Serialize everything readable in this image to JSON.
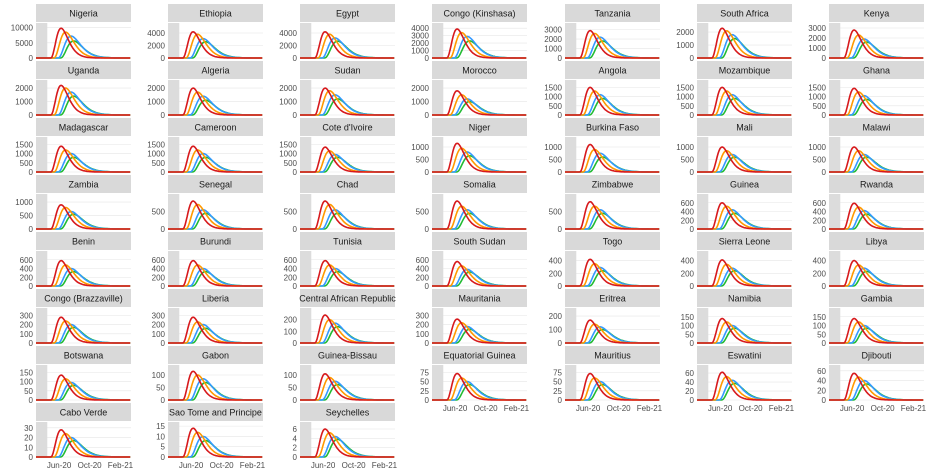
{
  "chart_data": {
    "type": "line",
    "layout": "facet-grid",
    "series_colors": {
      "scenario_a": "#d7191c",
      "scenario_b": "#ff9900",
      "scenario_c": "#3399ff",
      "scenario_d": "#22bb33"
    },
    "x_ticks": [
      "Jun-20",
      "Oct-20",
      "Feb-21"
    ],
    "xlim": [
      "2020-03-01",
      "2021-03-15"
    ],
    "panels": [
      {
        "title": "Nigeria",
        "ymax": 11500,
        "yticks": [
          0,
          5000,
          10000
        ],
        "yticklabels": [
          "0",
          "5000",
          "10000"
        ],
        "peaks": {
          "red": 9800,
          "orange": 8500,
          "blue": 7200,
          "green": 5600
        }
      },
      {
        "title": "Ethiopia",
        "ymax": 5600,
        "yticks": [
          0,
          2000,
          4000
        ],
        "yticklabels": [
          "0",
          "2000",
          "4000"
        ],
        "peaks": {
          "red": 4200,
          "orange": 3800,
          "blue": 3100,
          "green": 2600
        }
      },
      {
        "title": "Egypt",
        "ymax": 5600,
        "yticks": [
          0,
          2000,
          4000
        ],
        "yticklabels": [
          "0",
          "2000",
          "4000"
        ],
        "peaks": {
          "red": 4200,
          "orange": 3800,
          "blue": 3200,
          "green": 2700
        }
      },
      {
        "title": "Congo (Kinshasa)",
        "ymax": 4700,
        "yticks": [
          0,
          1000,
          2000,
          3000,
          4000
        ],
        "yticklabels": [
          "0",
          "1000",
          "2000",
          "3000",
          "4000"
        ],
        "peaks": {
          "red": 3900,
          "orange": 3400,
          "blue": 2900,
          "green": 2300
        }
      },
      {
        "title": "Tanzania",
        "ymax": 3700,
        "yticks": [
          0,
          1000,
          2000,
          3000
        ],
        "yticklabels": [
          "0",
          "1000",
          "2000",
          "3000"
        ],
        "peaks": {
          "red": 2900,
          "orange": 2600,
          "blue": 2200,
          "green": 1800
        }
      },
      {
        "title": "South Africa",
        "ymax": 2700,
        "yticks": [
          0,
          1000,
          2000
        ],
        "yticklabels": [
          "0",
          "1000",
          "2000"
        ],
        "peaks": {
          "red": 2300,
          "orange": 2100,
          "blue": 1800,
          "green": 1500
        }
      },
      {
        "title": "Kenya",
        "ymax": 3500,
        "yticks": [
          0,
          1000,
          2000,
          3000
        ],
        "yticklabels": [
          "0",
          "1000",
          "2000",
          "3000"
        ],
        "peaks": {
          "red": 2800,
          "orange": 2300,
          "blue": 1900,
          "green": 1600
        }
      },
      {
        "title": "Uganda",
        "ymax": 2600,
        "yticks": [
          0,
          1000,
          2000
        ],
        "yticklabels": [
          "0",
          "1000",
          "2000"
        ],
        "peaks": {
          "red": 2200,
          "orange": 2000,
          "blue": 1700,
          "green": 1400
        }
      },
      {
        "title": "Algeria",
        "ymax": 2600,
        "yticks": [
          0,
          1000,
          2000
        ],
        "yticklabels": [
          "0",
          "1000",
          "2000"
        ],
        "peaks": {
          "red": 2000,
          "orange": 1700,
          "blue": 1400,
          "green": 1100
        }
      },
      {
        "title": "Sudan",
        "ymax": 2600,
        "yticks": [
          0,
          1000,
          2000
        ],
        "yticklabels": [
          "0",
          "1000",
          "2000"
        ],
        "peaks": {
          "red": 2000,
          "orange": 1800,
          "blue": 1500,
          "green": 1200
        }
      },
      {
        "title": "Morocco",
        "ymax": 2600,
        "yticks": [
          0,
          1000,
          2000
        ],
        "yticklabels": [
          "0",
          "1000",
          "2000"
        ],
        "peaks": {
          "red": 1800,
          "orange": 1500,
          "blue": 1200,
          "green": 1000
        }
      },
      {
        "title": "Angola",
        "ymax": 1900,
        "yticks": [
          0,
          500,
          1000,
          1500
        ],
        "yticklabels": [
          "0",
          "500",
          "1000",
          "1500"
        ],
        "peaks": {
          "red": 1500,
          "orange": 1300,
          "blue": 1100,
          "green": 900
        }
      },
      {
        "title": "Mozambique",
        "ymax": 1900,
        "yticks": [
          0,
          500,
          1000,
          1500
        ],
        "yticklabels": [
          "0",
          "500",
          "1000",
          "1500"
        ],
        "peaks": {
          "red": 1500,
          "orange": 1300,
          "blue": 1100,
          "green": 900
        }
      },
      {
        "title": "Ghana",
        "ymax": 1900,
        "yticks": [
          0,
          500,
          1000,
          1500
        ],
        "yticklabels": [
          "0",
          "500",
          "1000",
          "1500"
        ],
        "peaks": {
          "red": 1450,
          "orange": 1250,
          "blue": 1050,
          "green": 850
        }
      },
      {
        "title": "Madagascar",
        "ymax": 1900,
        "yticks": [
          0,
          500,
          1000,
          1500
        ],
        "yticklabels": [
          "0",
          "500",
          "1000",
          "1500"
        ],
        "peaks": {
          "red": 1400,
          "orange": 1200,
          "blue": 1000,
          "green": 800
        }
      },
      {
        "title": "Cameroon",
        "ymax": 1900,
        "yticks": [
          0,
          500,
          1000,
          1500
        ],
        "yticklabels": [
          "0",
          "500",
          "1000",
          "1500"
        ],
        "peaks": {
          "red": 1400,
          "orange": 1200,
          "blue": 1000,
          "green": 800
        }
      },
      {
        "title": "Cote d'Ivoire",
        "ymax": 1900,
        "yticks": [
          0,
          500,
          1000,
          1500
        ],
        "yticklabels": [
          "0",
          "500",
          "1000",
          "1500"
        ],
        "peaks": {
          "red": 1350,
          "orange": 1150,
          "blue": 950,
          "green": 800
        }
      },
      {
        "title": "Niger",
        "ymax": 1400,
        "yticks": [
          0,
          500,
          1000
        ],
        "yticklabels": [
          "0",
          "500",
          "1000"
        ],
        "peaks": {
          "red": 1150,
          "orange": 950,
          "blue": 800,
          "green": 650
        }
      },
      {
        "title": "Burkina Faso",
        "ymax": 1400,
        "yticks": [
          0,
          500,
          1000
        ],
        "yticklabels": [
          "0",
          "500",
          "1000"
        ],
        "peaks": {
          "red": 1100,
          "orange": 900,
          "blue": 750,
          "green": 600
        }
      },
      {
        "title": "Mali",
        "ymax": 1400,
        "yticks": [
          0,
          500,
          1000
        ],
        "yticklabels": [
          "0",
          "500",
          "1000"
        ],
        "peaks": {
          "red": 1000,
          "orange": 850,
          "blue": 700,
          "green": 600
        }
      },
      {
        "title": "Malawi",
        "ymax": 1400,
        "yticks": [
          0,
          500,
          1000
        ],
        "yticklabels": [
          "0",
          "500",
          "1000"
        ],
        "peaks": {
          "red": 1000,
          "orange": 850,
          "blue": 700,
          "green": 600
        }
      },
      {
        "title": "Zambia",
        "ymax": 1300,
        "yticks": [
          0,
          500,
          1000
        ],
        "yticklabels": [
          "0",
          "500",
          "1000"
        ],
        "peaks": {
          "red": 900,
          "orange": 800,
          "blue": 650,
          "green": 550
        }
      },
      {
        "title": "Senegal",
        "ymax": 1000,
        "yticks": [
          0,
          500
        ],
        "yticklabels": [
          "0",
          "500"
        ],
        "peaks": {
          "red": 800,
          "orange": 700,
          "blue": 550,
          "green": 450
        }
      },
      {
        "title": "Chad",
        "ymax": 1000,
        "yticks": [
          0,
          500
        ],
        "yticklabels": [
          "0",
          "500"
        ],
        "peaks": {
          "red": 800,
          "orange": 700,
          "blue": 550,
          "green": 450
        }
      },
      {
        "title": "Somalia",
        "ymax": 1000,
        "yticks": [
          0,
          500
        ],
        "yticklabels": [
          "0",
          "500"
        ],
        "peaks": {
          "red": 800,
          "orange": 650,
          "blue": 550,
          "green": 450
        }
      },
      {
        "title": "Zimbabwe",
        "ymax": 1000,
        "yticks": [
          0,
          500
        ],
        "yticklabels": [
          "0",
          "500"
        ],
        "peaks": {
          "red": 780,
          "orange": 650,
          "blue": 550,
          "green": 450
        }
      },
      {
        "title": "Guinea",
        "ymax": 800,
        "yticks": [
          0,
          200,
          400,
          600
        ],
        "yticklabels": [
          "0",
          "200",
          "400",
          "600"
        ],
        "peaks": {
          "red": 600,
          "orange": 520,
          "blue": 440,
          "green": 360
        }
      },
      {
        "title": "Rwanda",
        "ymax": 800,
        "yticks": [
          0,
          200,
          400,
          600
        ],
        "yticklabels": [
          "0",
          "200",
          "400",
          "600"
        ],
        "peaks": {
          "red": 590,
          "orange": 500,
          "blue": 420,
          "green": 340
        }
      },
      {
        "title": "Benin",
        "ymax": 800,
        "yticks": [
          0,
          200,
          400,
          600
        ],
        "yticklabels": [
          "0",
          "200",
          "400",
          "600"
        ],
        "peaks": {
          "red": 580,
          "orange": 480,
          "blue": 400,
          "green": 330
        }
      },
      {
        "title": "Burundi",
        "ymax": 800,
        "yticks": [
          0,
          200,
          400,
          600
        ],
        "yticklabels": [
          "0",
          "200",
          "400",
          "600"
        ],
        "peaks": {
          "red": 580,
          "orange": 480,
          "blue": 400,
          "green": 330
        }
      },
      {
        "title": "Tunisia",
        "ymax": 800,
        "yticks": [
          0,
          200,
          400,
          600
        ],
        "yticklabels": [
          "0",
          "200",
          "400",
          "600"
        ],
        "peaks": {
          "red": 580,
          "orange": 480,
          "blue": 400,
          "green": 330
        }
      },
      {
        "title": "South Sudan",
        "ymax": 800,
        "yticks": [
          0,
          200,
          400,
          600
        ],
        "yticklabels": [
          "0",
          "200",
          "400",
          "600"
        ],
        "peaks": {
          "red": 560,
          "orange": 460,
          "blue": 380,
          "green": 320
        }
      },
      {
        "title": "Togo",
        "ymax": 550,
        "yticks": [
          0,
          200,
          400
        ],
        "yticklabels": [
          "0",
          "200",
          "400"
        ],
        "peaks": {
          "red": 420,
          "orange": 350,
          "blue": 290,
          "green": 240
        }
      },
      {
        "title": "Sierra Leone",
        "ymax": 550,
        "yticks": [
          0,
          200,
          400
        ],
        "yticklabels": [
          "0",
          "200",
          "400"
        ],
        "peaks": {
          "red": 410,
          "orange": 340,
          "blue": 280,
          "green": 240
        }
      },
      {
        "title": "Libya",
        "ymax": 550,
        "yticks": [
          0,
          200,
          400
        ],
        "yticklabels": [
          "0",
          "200",
          "400"
        ],
        "peaks": {
          "red": 400,
          "orange": 330,
          "blue": 280,
          "green": 230
        }
      },
      {
        "title": "Congo (Brazzaville)",
        "ymax": 380,
        "yticks": [
          0,
          100,
          200,
          300
        ],
        "yticklabels": [
          "0",
          "100",
          "200",
          "300"
        ],
        "peaks": {
          "red": 280,
          "orange": 240,
          "blue": 200,
          "green": 170
        }
      },
      {
        "title": "Liberia",
        "ymax": 380,
        "yticks": [
          0,
          100,
          200,
          300
        ],
        "yticklabels": [
          "0",
          "100",
          "200",
          "300"
        ],
        "peaks": {
          "red": 280,
          "orange": 230,
          "blue": 200,
          "green": 160
        }
      },
      {
        "title": "Central African Republic",
        "ymax": 300,
        "yticks": [
          0,
          100,
          200
        ],
        "yticklabels": [
          "0",
          "100",
          "200"
        ],
        "peaks": {
          "red": 240,
          "orange": 200,
          "blue": 170,
          "green": 140
        }
      },
      {
        "title": "Mauritania",
        "ymax": 380,
        "yticks": [
          0,
          100,
          200,
          300
        ],
        "yticklabels": [
          "0",
          "100",
          "200",
          "300"
        ],
        "peaks": {
          "red": 260,
          "orange": 220,
          "blue": 180,
          "green": 150
        }
      },
      {
        "title": "Eritrea",
        "ymax": 260,
        "yticks": [
          0,
          100,
          200
        ],
        "yticklabels": [
          "0",
          "100",
          "200"
        ],
        "peaks": {
          "red": 170,
          "orange": 140,
          "blue": 120,
          "green": 100
        }
      },
      {
        "title": "Namibia",
        "ymax": 200,
        "yticks": [
          0,
          50,
          100,
          150
        ],
        "yticklabels": [
          "0",
          "50",
          "100",
          "150"
        ],
        "peaks": {
          "red": 140,
          "orange": 120,
          "blue": 100,
          "green": 85
        }
      },
      {
        "title": "Gambia",
        "ymax": 200,
        "yticks": [
          0,
          50,
          100,
          150
        ],
        "yticklabels": [
          "0",
          "50",
          "100",
          "150"
        ],
        "peaks": {
          "red": 140,
          "orange": 120,
          "blue": 100,
          "green": 85
        }
      },
      {
        "title": "Botswana",
        "ymax": 190,
        "yticks": [
          0,
          50,
          100,
          150
        ],
        "yticklabels": [
          "0",
          "50",
          "100",
          "150"
        ],
        "peaks": {
          "red": 135,
          "orange": 115,
          "blue": 95,
          "green": 80
        }
      },
      {
        "title": "Gabon",
        "ymax": 140,
        "yticks": [
          0,
          50,
          100
        ],
        "yticklabels": [
          "0",
          "50",
          "100"
        ],
        "peaks": {
          "red": 115,
          "orange": 100,
          "blue": 85,
          "green": 70
        }
      },
      {
        "title": "Guinea-Bissau",
        "ymax": 140,
        "yticks": [
          0,
          50,
          100
        ],
        "yticklabels": [
          "0",
          "50",
          "100"
        ],
        "peaks": {
          "red": 105,
          "orange": 90,
          "blue": 75,
          "green": 62
        }
      },
      {
        "title": "Equatorial Guinea",
        "ymax": 95,
        "yticks": [
          0,
          25,
          50,
          75
        ],
        "yticklabels": [
          "0",
          "25",
          "50",
          "75"
        ],
        "peaks": {
          "red": 72,
          "orange": 60,
          "blue": 50,
          "green": 42
        }
      },
      {
        "title": "Mauritius",
        "ymax": 95,
        "yticks": [
          0,
          25,
          50,
          75
        ],
        "yticklabels": [
          "0",
          "25",
          "50",
          "75"
        ],
        "peaks": {
          "red": 72,
          "orange": 60,
          "blue": 50,
          "green": 42
        }
      },
      {
        "title": "Eswatini",
        "ymax": 78,
        "yticks": [
          0,
          20,
          40,
          60
        ],
        "yticklabels": [
          "0",
          "20",
          "40",
          "60"
        ],
        "peaks": {
          "red": 62,
          "orange": 52,
          "blue": 44,
          "green": 37
        }
      },
      {
        "title": "Djibouti",
        "ymax": 72,
        "yticks": [
          0,
          20,
          40,
          60
        ],
        "yticklabels": [
          "0",
          "20",
          "40",
          "60"
        ],
        "peaks": {
          "red": 55,
          "orange": 47,
          "blue": 40,
          "green": 33
        }
      },
      {
        "title": "Cabo Verde",
        "ymax": 36,
        "yticks": [
          0,
          10,
          20,
          30
        ],
        "yticklabels": [
          "0",
          "10",
          "20",
          "30"
        ],
        "peaks": {
          "red": 28,
          "orange": 24,
          "blue": 20,
          "green": 17
        }
      },
      {
        "title": "Sao Tome and Principe",
        "ymax": 17,
        "yticks": [
          0,
          5,
          10,
          15
        ],
        "yticklabels": [
          "0",
          "5",
          "10",
          "15"
        ],
        "peaks": {
          "red": 14,
          "orange": 12,
          "blue": 10,
          "green": 8
        }
      },
      {
        "title": "Seychelles",
        "ymax": 7.5,
        "yticks": [
          0,
          2,
          4,
          6
        ],
        "yticklabels": [
          "0",
          "2",
          "4",
          "6"
        ],
        "peaks": {
          "red": 6,
          "orange": 5.2,
          "blue": 4.4,
          "green": 3.8
        }
      }
    ]
  }
}
